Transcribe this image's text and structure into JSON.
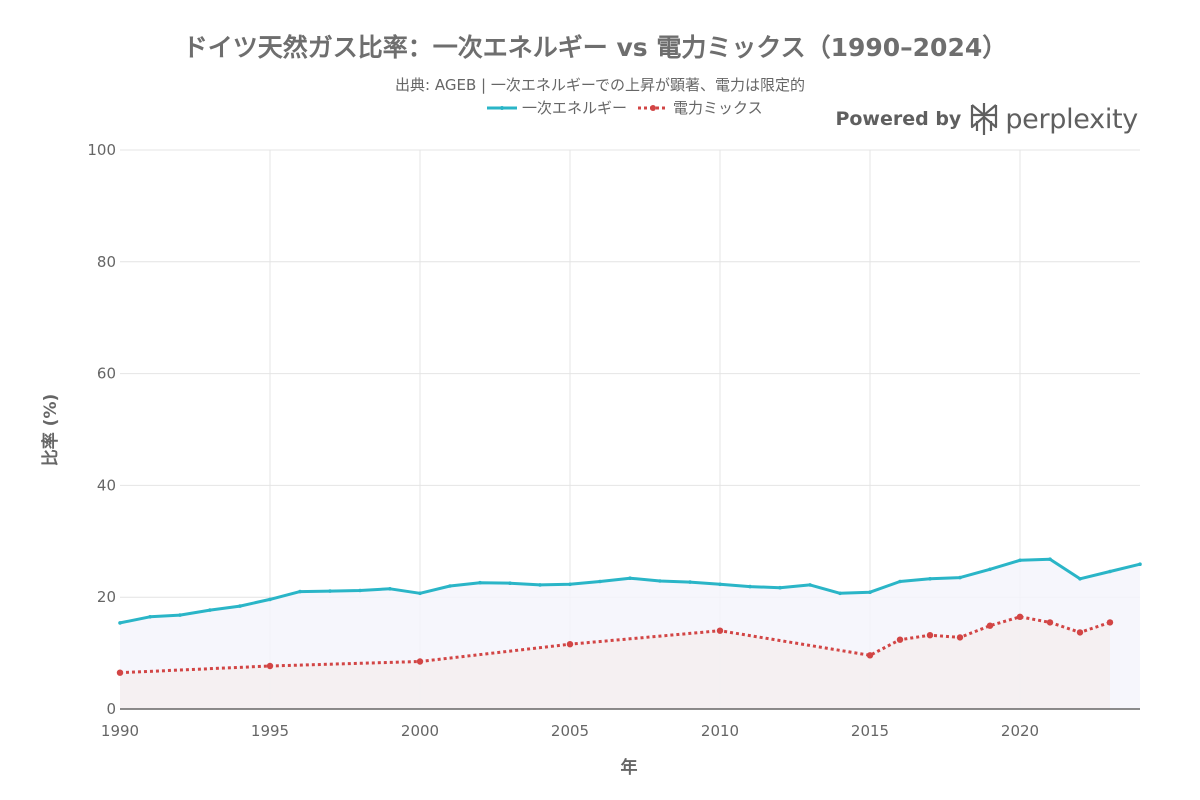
{
  "chart_data": {
    "type": "line",
    "title": "ドイツ天然ガス比率：一次エネルギー vs 電力ミックス（1990–2024）",
    "subtitle": "出典: AGEB | 一次エネルギーでの上昇が顕著、電力は限定的",
    "xlabel": "年",
    "ylabel": "比率 (%)",
    "xlim": [
      1990,
      2024
    ],
    "ylim": [
      0,
      100
    ],
    "x_ticks": [
      1990,
      1995,
      2000,
      2005,
      2010,
      2015,
      2020
    ],
    "y_ticks": [
      0,
      20,
      40,
      60,
      80,
      100
    ],
    "grid": true,
    "legend_position": "top-center",
    "series": [
      {
        "name": "一次エネルギー",
        "color": "#2ab5c7",
        "fill": "#f4f5fc",
        "style": "solid",
        "x": [
          1990,
          1991,
          1992,
          1993,
          1994,
          1995,
          1996,
          1997,
          1998,
          1999,
          2000,
          2001,
          2002,
          2003,
          2004,
          2005,
          2006,
          2007,
          2008,
          2009,
          2010,
          2011,
          2012,
          2013,
          2014,
          2015,
          2016,
          2017,
          2018,
          2019,
          2020,
          2021,
          2022,
          2023,
          2024
        ],
        "values": [
          15.4,
          16.5,
          16.8,
          17.7,
          18.4,
          19.6,
          21.0,
          21.1,
          21.2,
          21.5,
          20.7,
          22.0,
          22.6,
          22.5,
          22.2,
          22.3,
          22.8,
          23.4,
          22.9,
          22.7,
          22.3,
          21.9,
          21.7,
          22.2,
          20.7,
          20.9,
          22.8,
          23.3,
          23.5,
          25.0,
          26.6,
          26.8,
          23.3,
          24.6,
          25.9
        ]
      },
      {
        "name": "電力ミックス",
        "color": "#d24545",
        "fill": "#f5eef0",
        "style": "dotted",
        "x": [
          1990,
          1995,
          2000,
          2005,
          2010,
          2015,
          2016,
          2017,
          2018,
          2019,
          2020,
          2021,
          2022,
          2023
        ],
        "values": [
          6.5,
          7.7,
          8.5,
          11.6,
          14.0,
          9.6,
          12.4,
          13.2,
          12.8,
          14.9,
          16.5,
          15.5,
          13.7,
          15.5
        ]
      }
    ]
  },
  "branding": {
    "powered_by": "Powered by",
    "brand_name": "perplexity",
    "logo_icon": "perplexity-logo-icon"
  }
}
